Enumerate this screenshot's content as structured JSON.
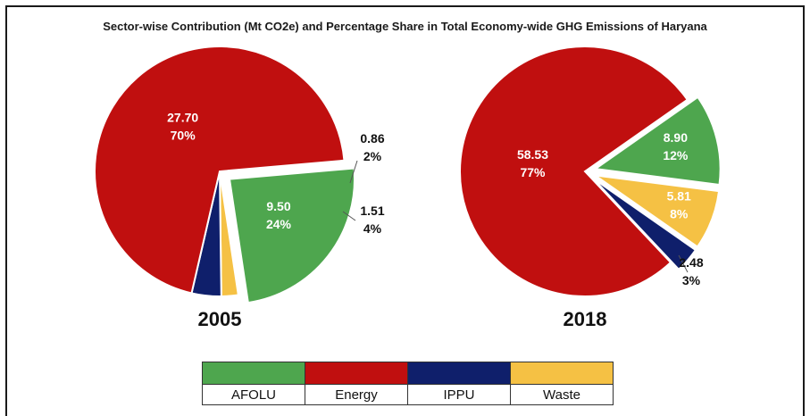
{
  "chart_data": [
    {
      "type": "pie",
      "title": "Sector-wise Contribution (Mt CO2e) and Percentage Share in Total Economy-wide GHG Emissions of Haryana",
      "label": "2005",
      "slices": [
        {
          "name": "AFOLU",
          "value": 9.5,
          "percent": "24%",
          "value_label": "9.50",
          "color": "#4ea64e"
        },
        {
          "name": "Waste",
          "value": 0.86,
          "percent": "2%",
          "value_label": "0.86",
          "color": "#f5c144"
        },
        {
          "name": "IPPU",
          "value": 1.51,
          "percent": "4%",
          "value_label": "1.51",
          "color": "#0f1f6b"
        },
        {
          "name": "Energy",
          "value": 27.7,
          "percent": "70%",
          "value_label": "27.70",
          "color": "#c00f0f"
        }
      ]
    },
    {
      "type": "pie",
      "label": "2018",
      "slices": [
        {
          "name": "AFOLU",
          "value": 8.9,
          "percent": "12%",
          "value_label": "8.90",
          "color": "#4ea64e"
        },
        {
          "name": "Waste",
          "value": 5.81,
          "percent": "8%",
          "value_label": "5.81",
          "color": "#f5c144"
        },
        {
          "name": "IPPU",
          "value": 2.48,
          "percent": "3%",
          "value_label": "2.48",
          "color": "#0f1f6b"
        },
        {
          "name": "Energy",
          "value": 58.53,
          "percent": "77%",
          "value_label": "58.53",
          "color": "#c00f0f"
        }
      ]
    }
  ],
  "legend": [
    {
      "name": "AFOLU",
      "color": "#4ea64e"
    },
    {
      "name": "Energy",
      "color": "#c00f0f"
    },
    {
      "name": "IPPU",
      "color": "#0f1f6b"
    },
    {
      "name": "Waste",
      "color": "#f5c144"
    }
  ]
}
